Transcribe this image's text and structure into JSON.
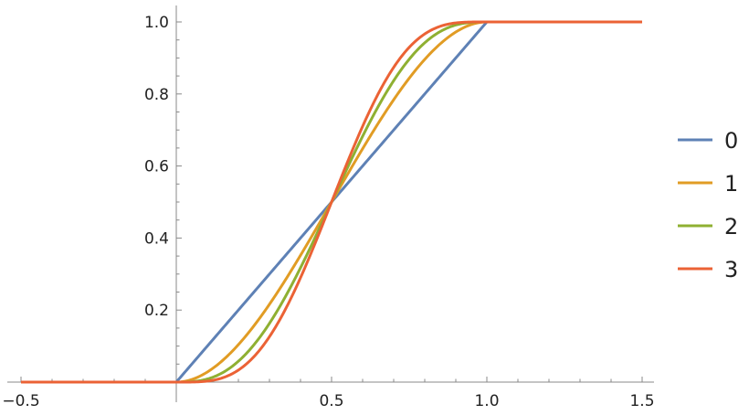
{
  "chart_data": {
    "type": "line",
    "title": "",
    "xlabel": "",
    "ylabel": "",
    "xlim": [
      -0.5,
      1.5
    ],
    "ylim": [
      0,
      1.0
    ],
    "grid": false,
    "legend_placement": "right",
    "x_ticks": [
      "-0.5",
      "0.5",
      "1.0",
      "1.5"
    ],
    "x_tick_values": [
      -0.5,
      0.5,
      1.0,
      1.5
    ],
    "y_ticks": [
      "0.2",
      "0.4",
      "0.6",
      "0.8",
      "1.0"
    ],
    "y_tick_values": [
      0.2,
      0.4,
      0.6,
      0.8,
      1.0
    ],
    "series": [
      {
        "name": "0",
        "color": "#5E81B5",
        "formula": "clamp(x)",
        "coefficients": [
          0,
          1
        ]
      },
      {
        "name": "1",
        "color": "#E19C24",
        "formula": "3x^2-2x^3",
        "coefficients": [
          0,
          0,
          3,
          -2
        ]
      },
      {
        "name": "2",
        "color": "#8FB032",
        "formula": "10x^3-15x^4+6x^5",
        "coefficients": [
          0,
          0,
          0,
          10,
          -15,
          6
        ]
      },
      {
        "name": "3",
        "color": "#EB6235",
        "formula": "35x^4-84x^5+70x^6-20x^7",
        "coefficients": [
          0,
          0,
          0,
          0,
          35,
          -84,
          70,
          -20
        ]
      }
    ]
  }
}
